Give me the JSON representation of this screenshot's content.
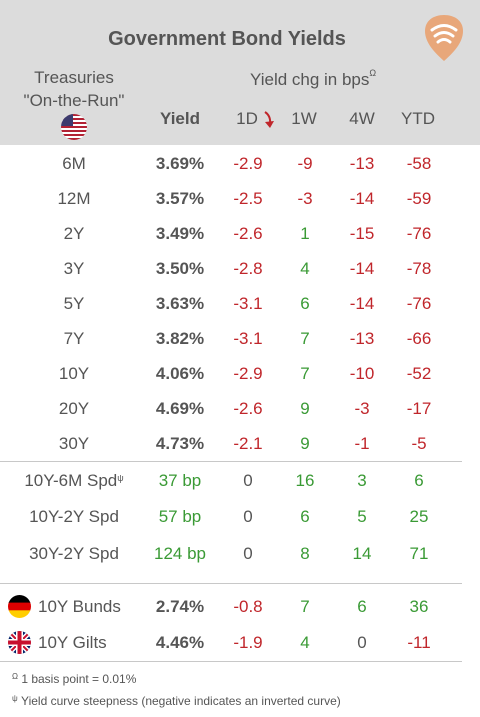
{
  "title": "Government Bond Yields",
  "treasuries_label_1": "Treasuries",
  "treasuries_label_2": "\"On-the-Run\"",
  "yield_chg_label": "Yield chg in bps",
  "yield_chg_sup": "Ω",
  "columns": {
    "yield": "Yield",
    "d1": "1D",
    "w1": "1W",
    "w4": "4W",
    "ytd": "YTD"
  },
  "treasuries": [
    {
      "label": "6M",
      "yield": "3.69%",
      "d1": "-2.9",
      "w1": "-9",
      "w4": "-13",
      "ytd": "-58"
    },
    {
      "label": "12M",
      "yield": "3.57%",
      "d1": "-2.5",
      "w1": "-3",
      "w4": "-14",
      "ytd": "-59"
    },
    {
      "label": "2Y",
      "yield": "3.49%",
      "d1": "-2.6",
      "w1": "1",
      "w4": "-15",
      "ytd": "-76"
    },
    {
      "label": "3Y",
      "yield": "3.50%",
      "d1": "-2.8",
      "w1": "4",
      "w4": "-14",
      "ytd": "-78"
    },
    {
      "label": "5Y",
      "yield": "3.63%",
      "d1": "-3.1",
      "w1": "6",
      "w4": "-14",
      "ytd": "-76"
    },
    {
      "label": "7Y",
      "yield": "3.82%",
      "d1": "-3.1",
      "w1": "7",
      "w4": "-13",
      "ytd": "-66"
    },
    {
      "label": "10Y",
      "yield": "4.06%",
      "d1": "-2.9",
      "w1": "7",
      "w4": "-10",
      "ytd": "-52"
    },
    {
      "label": "20Y",
      "yield": "4.69%",
      "d1": "-2.6",
      "w1": "9",
      "w4": "-3",
      "ytd": "-17"
    },
    {
      "label": "30Y",
      "yield": "4.73%",
      "d1": "-2.1",
      "w1": "9",
      "w4": "-1",
      "ytd": "-5"
    }
  ],
  "spreads": [
    {
      "label": "10Y-6M Spd",
      "sup": "ψ",
      "yield": "37 bp",
      "d1": "0",
      "w1": "16",
      "w4": "3",
      "ytd": "6"
    },
    {
      "label": "10Y-2Y Spd",
      "sup": "",
      "yield": "57 bp",
      "d1": "0",
      "w1": "6",
      "w4": "5",
      "ytd": "25"
    },
    {
      "label": "30Y-2Y Spd",
      "sup": "",
      "yield": "124 bp",
      "d1": "0",
      "w1": "8",
      "w4": "14",
      "ytd": "71"
    }
  ],
  "international": [
    {
      "label": "10Y Bunds",
      "flag": "germany-flag-icon",
      "yield": "2.74%",
      "d1": "-0.8",
      "w1": "7",
      "w4": "6",
      "ytd": "36"
    },
    {
      "label": "10Y Gilts",
      "flag": "uk-flag-icon",
      "yield": "4.46%",
      "d1": "-1.9",
      "w1": "4",
      "w4": "0",
      "ytd": "-11"
    }
  ],
  "footnotes": {
    "f1_sym": "Ω",
    "f1_text": " 1 basis point = 0.01%",
    "f2_sym": "ψ",
    "f2_text": " Yield curve steepness (negative indicates an inverted curve)"
  },
  "colors": {
    "negative": "#c0262b",
    "positive": "#3a9a35",
    "header_bg": "#dcdcdc",
    "logo": "#e8a77a"
  }
}
